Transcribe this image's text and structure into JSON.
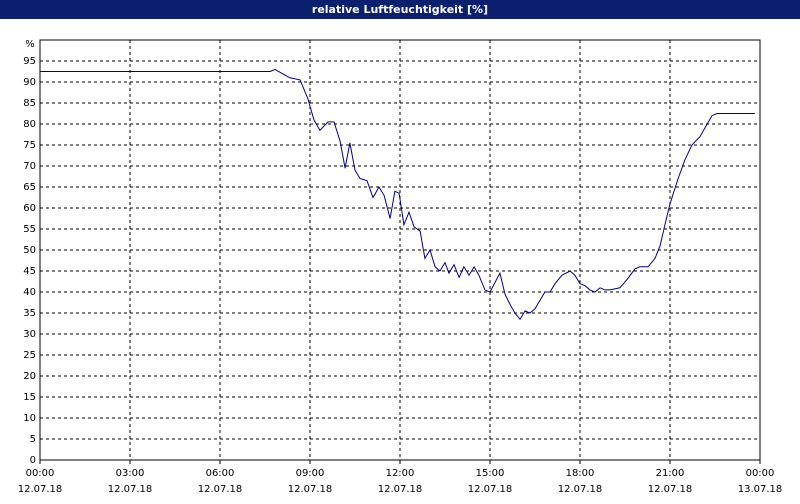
{
  "chart_data": {
    "type": "line",
    "title": "relative Luftfeuchtigkeit [%]",
    "y_unit": "%",
    "xlim": [
      0,
      24
    ],
    "ylim": [
      0,
      100
    ],
    "xticks": [
      {
        "value": 0,
        "label": "00:00"
      },
      {
        "value": 3,
        "label": "03:00"
      },
      {
        "value": 6,
        "label": "06:00"
      },
      {
        "value": 9,
        "label": "09:00"
      },
      {
        "value": 12,
        "label": "12:00"
      },
      {
        "value": 15,
        "label": "15:00"
      },
      {
        "value": 18,
        "label": "18:00"
      },
      {
        "value": 21,
        "label": "21:00"
      },
      {
        "value": 24,
        "label": "00:00"
      }
    ],
    "xtick_dates": [
      "12.07.18",
      "12.07.18",
      "12.07.18",
      "12.07.18",
      "12.07.18",
      "12.07.18",
      "12.07.18",
      "12.07.18",
      "13.07.18"
    ],
    "yticks": [
      0,
      5,
      10,
      15,
      20,
      25,
      30,
      35,
      40,
      45,
      50,
      55,
      60,
      65,
      70,
      75,
      80,
      85,
      90,
      95
    ],
    "grid": true,
    "series": [
      {
        "color": "#00008b",
        "x": [
          0,
          7.67,
          7.83,
          8.33,
          8.67,
          8.93,
          9.13,
          9.33,
          9.6,
          9.8,
          10.0,
          10.17,
          10.33,
          10.5,
          10.67,
          10.9,
          11.1,
          11.3,
          11.47,
          11.67,
          11.83,
          11.97,
          12.13,
          12.3,
          12.47,
          12.67,
          12.83,
          13.0,
          13.17,
          13.33,
          13.5,
          13.63,
          13.8,
          13.97,
          14.13,
          14.3,
          14.47,
          14.63,
          14.83,
          15.0,
          15.33,
          15.5,
          15.67,
          15.83,
          16.0,
          16.17,
          16.33,
          16.5,
          16.83,
          17.0,
          17.17,
          17.4,
          17.67,
          17.83,
          18.0,
          18.17,
          18.33,
          18.5,
          18.67,
          18.83,
          19.0,
          19.33,
          19.57,
          19.83,
          20.0,
          20.27,
          20.5,
          20.67,
          20.83,
          21.0,
          21.27,
          21.5,
          21.73,
          22.0,
          22.2,
          22.4,
          22.57,
          23.83
        ],
        "values": [
          92.5,
          92.5,
          93,
          91,
          90.5,
          86,
          81,
          78.5,
          80.5,
          80.5,
          76,
          69.5,
          75.5,
          69,
          67,
          66.5,
          62.5,
          65,
          63,
          57.5,
          64,
          63.5,
          56,
          59,
          55.5,
          54.5,
          48,
          50,
          46,
          45,
          47,
          44.5,
          46.5,
          43.5,
          46,
          44,
          46,
          44,
          40.5,
          40,
          44.5,
          39.5,
          37,
          35,
          33.5,
          35.5,
          35,
          36,
          40,
          40,
          42,
          44,
          45,
          44,
          42,
          41.5,
          40.5,
          40,
          41,
          40.5,
          40.5,
          41,
          43,
          45.5,
          46,
          46,
          48,
          51,
          56,
          61,
          67,
          71.5,
          75,
          77,
          79.5,
          82,
          82.5,
          82.5
        ]
      }
    ]
  }
}
